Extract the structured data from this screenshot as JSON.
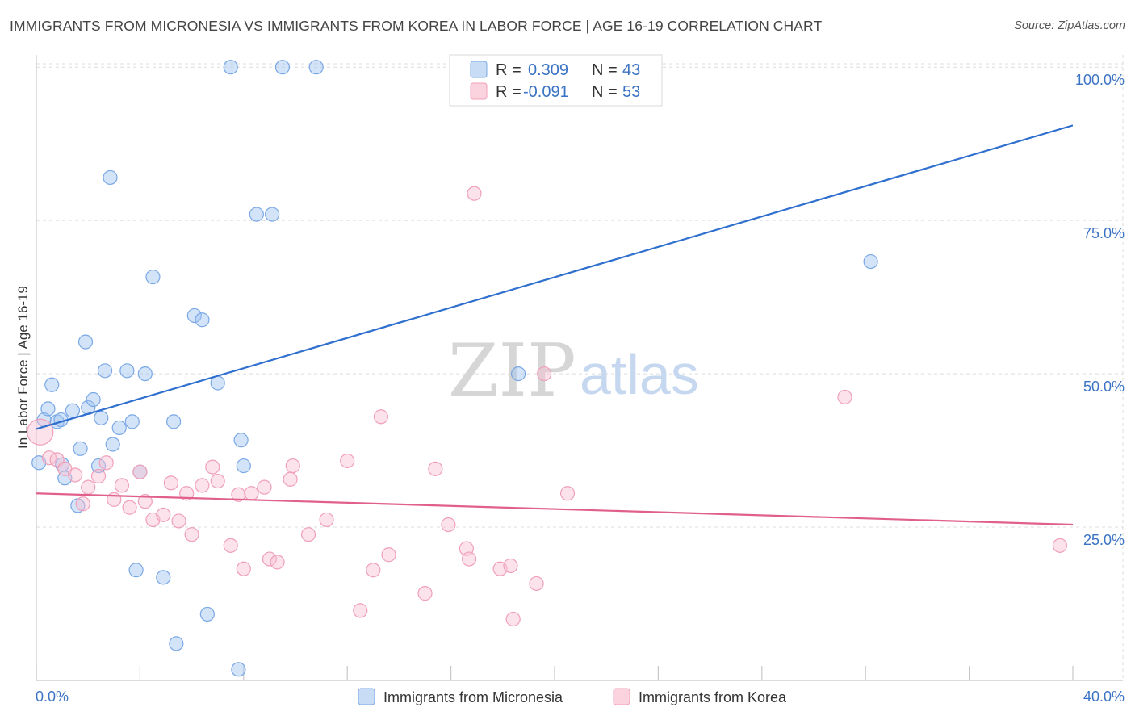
{
  "title": "IMMIGRANTS FROM MICRONESIA VS IMMIGRANTS FROM KOREA IN LABOR FORCE | AGE 16-19 CORRELATION CHART",
  "source": "Source: ZipAtlas.com",
  "watermark": {
    "zip": "ZIP",
    "atlas": "atlas"
  },
  "stats": {
    "rows": [
      {
        "r_label": "R =",
        "r_value": "0.309",
        "n_label": "N =",
        "n_value": "43",
        "color": "#7aa8e6"
      },
      {
        "r_label": "R =",
        "r_value": "-0.091",
        "n_label": "N =",
        "n_value": "53",
        "color": "#f0a0b8"
      }
    ]
  },
  "legend": [
    {
      "label": "Immigrants from Micronesia",
      "color": "#7aa8e6"
    },
    {
      "label": "Immigrants from Korea",
      "color": "#f0a0b8"
    }
  ],
  "chart_data": {
    "type": "scatter",
    "title": "IMMIGRANTS FROM MICRONESIA VS IMMIGRANTS FROM KOREA IN LABOR FORCE | AGE 16-19 CORRELATION CHART",
    "xlabel": "",
    "ylabel": "In Labor Force | Age 16-19",
    "xlim": [
      0,
      40
    ],
    "ylim": [
      0,
      102
    ],
    "x_tick_labels": [
      "0.0%",
      "40.0%"
    ],
    "y_ticks": [
      25,
      50,
      75,
      100
    ],
    "y_tick_labels": [
      "25.0%",
      "50.0%",
      "75.0%",
      "100.0%"
    ],
    "grid": true,
    "legend_position": "bottom",
    "series": [
      {
        "name": "Immigrants from Micronesia",
        "color": "#7aa8e6",
        "trend": {
          "x": [
            0,
            40
          ],
          "y": [
            41,
            90.5
          ],
          "color": "#2f6fce"
        },
        "points": [
          [
            0.1,
            35.5
          ],
          [
            0.3,
            42.5
          ],
          [
            0.45,
            44.3
          ],
          [
            0.6,
            48.2
          ],
          [
            0.8,
            42.2
          ],
          [
            0.95,
            42.5
          ],
          [
            1.0,
            35.2
          ],
          [
            1.1,
            33.0
          ],
          [
            1.4,
            44.0
          ],
          [
            1.6,
            28.5
          ],
          [
            1.7,
            37.8
          ],
          [
            1.9,
            55.2
          ],
          [
            2.0,
            44.5
          ],
          [
            2.2,
            45.8
          ],
          [
            2.4,
            35.0
          ],
          [
            2.5,
            42.8
          ],
          [
            2.65,
            50.5
          ],
          [
            2.85,
            82.0
          ],
          [
            2.95,
            38.5
          ],
          [
            3.2,
            41.2
          ],
          [
            3.5,
            50.5
          ],
          [
            3.7,
            42.2
          ],
          [
            3.85,
            18.0
          ],
          [
            4.0,
            34.0
          ],
          [
            4.2,
            50.0
          ],
          [
            4.5,
            65.8
          ],
          [
            4.9,
            16.8
          ],
          [
            5.3,
            42.2
          ],
          [
            5.4,
            6.0
          ],
          [
            6.1,
            59.5
          ],
          [
            6.4,
            58.8
          ],
          [
            6.6,
            10.8
          ],
          [
            7.0,
            48.5
          ],
          [
            7.5,
            100.0
          ],
          [
            7.8,
            1.8
          ],
          [
            7.9,
            39.2
          ],
          [
            8.0,
            35.0
          ],
          [
            8.5,
            76.0
          ],
          [
            9.1,
            76.0
          ],
          [
            9.5,
            100.0
          ],
          [
            10.8,
            100.0
          ],
          [
            18.6,
            50.0
          ],
          [
            32.2,
            68.3
          ]
        ]
      },
      {
        "name": "Immigrants from Korea",
        "color": "#f0a0b8",
        "trend": {
          "x": [
            0,
            40
          ],
          "y": [
            30.5,
            25.4
          ],
          "color": "#e0608a"
        },
        "points": [
          [
            0.15,
            40.5
          ],
          [
            0.5,
            36.3
          ],
          [
            0.8,
            36.0
          ],
          [
            1.1,
            34.5
          ],
          [
            1.5,
            33.5
          ],
          [
            1.8,
            28.8
          ],
          [
            2.0,
            31.5
          ],
          [
            2.4,
            33.3
          ],
          [
            2.7,
            35.5
          ],
          [
            3.0,
            29.5
          ],
          [
            3.3,
            31.8
          ],
          [
            3.6,
            28.2
          ],
          [
            4.0,
            34.0
          ],
          [
            4.2,
            29.2
          ],
          [
            4.5,
            26.2
          ],
          [
            4.9,
            27.0
          ],
          [
            5.2,
            32.2
          ],
          [
            5.5,
            26.0
          ],
          [
            5.8,
            30.5
          ],
          [
            6.0,
            23.8
          ],
          [
            6.4,
            31.8
          ],
          [
            6.8,
            34.8
          ],
          [
            7.0,
            32.5
          ],
          [
            7.5,
            22.0
          ],
          [
            7.8,
            30.3
          ],
          [
            8.0,
            18.2
          ],
          [
            8.3,
            30.5
          ],
          [
            8.8,
            31.5
          ],
          [
            9.0,
            19.8
          ],
          [
            9.3,
            19.3
          ],
          [
            9.8,
            32.8
          ],
          [
            9.9,
            35.0
          ],
          [
            10.5,
            23.8
          ],
          [
            11.2,
            26.2
          ],
          [
            12.0,
            35.8
          ],
          [
            12.5,
            11.4
          ],
          [
            13.0,
            18.0
          ],
          [
            13.3,
            43.0
          ],
          [
            13.6,
            20.5
          ],
          [
            15.0,
            14.2
          ],
          [
            15.4,
            34.5
          ],
          [
            15.9,
            25.4
          ],
          [
            16.6,
            21.5
          ],
          [
            16.7,
            19.8
          ],
          [
            16.9,
            79.4
          ],
          [
            17.9,
            18.2
          ],
          [
            18.3,
            18.7
          ],
          [
            18.4,
            10.0
          ],
          [
            19.3,
            15.8
          ],
          [
            19.6,
            50.0
          ],
          [
            20.5,
            30.5
          ],
          [
            31.2,
            46.2
          ],
          [
            39.5,
            22.0
          ]
        ]
      }
    ]
  }
}
